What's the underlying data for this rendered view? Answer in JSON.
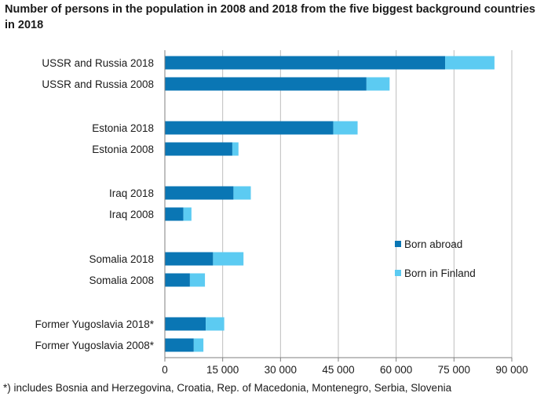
{
  "chart_data": {
    "type": "bar",
    "orientation": "horizontal",
    "stacked": true,
    "title": "Number of persons in the population in 2008 and 2018 from the five biggest background countries in 2018",
    "categories": [
      "USSR and Russia 2018",
      "USSR and Russia 2008",
      "Estonia 2018",
      "Estonia 2008",
      "Iraq 2018",
      "Iraq 2008",
      "Somalia 2018",
      "Somalia 2008",
      "Former Yugoslavia 2018*",
      "Former Yugoslavia 2008*"
    ],
    "series": [
      {
        "name": "Born abroad",
        "color": "#0a76b4",
        "values": [
          72700,
          52300,
          43700,
          17500,
          17800,
          4800,
          12500,
          6500,
          10600,
          7500
        ]
      },
      {
        "name": "Born in Finland",
        "color": "#5ccbf2",
        "values": [
          12800,
          6000,
          6300,
          1600,
          4500,
          2100,
          7900,
          3900,
          4800,
          2500
        ]
      }
    ],
    "xlim": [
      0,
      90000
    ],
    "xticks": [
      0,
      15000,
      30000,
      45000,
      60000,
      75000,
      90000
    ],
    "xtick_labels": [
      "0",
      "15 000",
      "30 000",
      "45 000",
      "60 000",
      "75 000",
      "90 000"
    ],
    "grid": true,
    "legend_position": "center-right",
    "footnote": "*) includes Bosnia and Herzegovina, Croatia, Rep. of Macedonia, Montenegro, Serbia, Slovenia"
  }
}
